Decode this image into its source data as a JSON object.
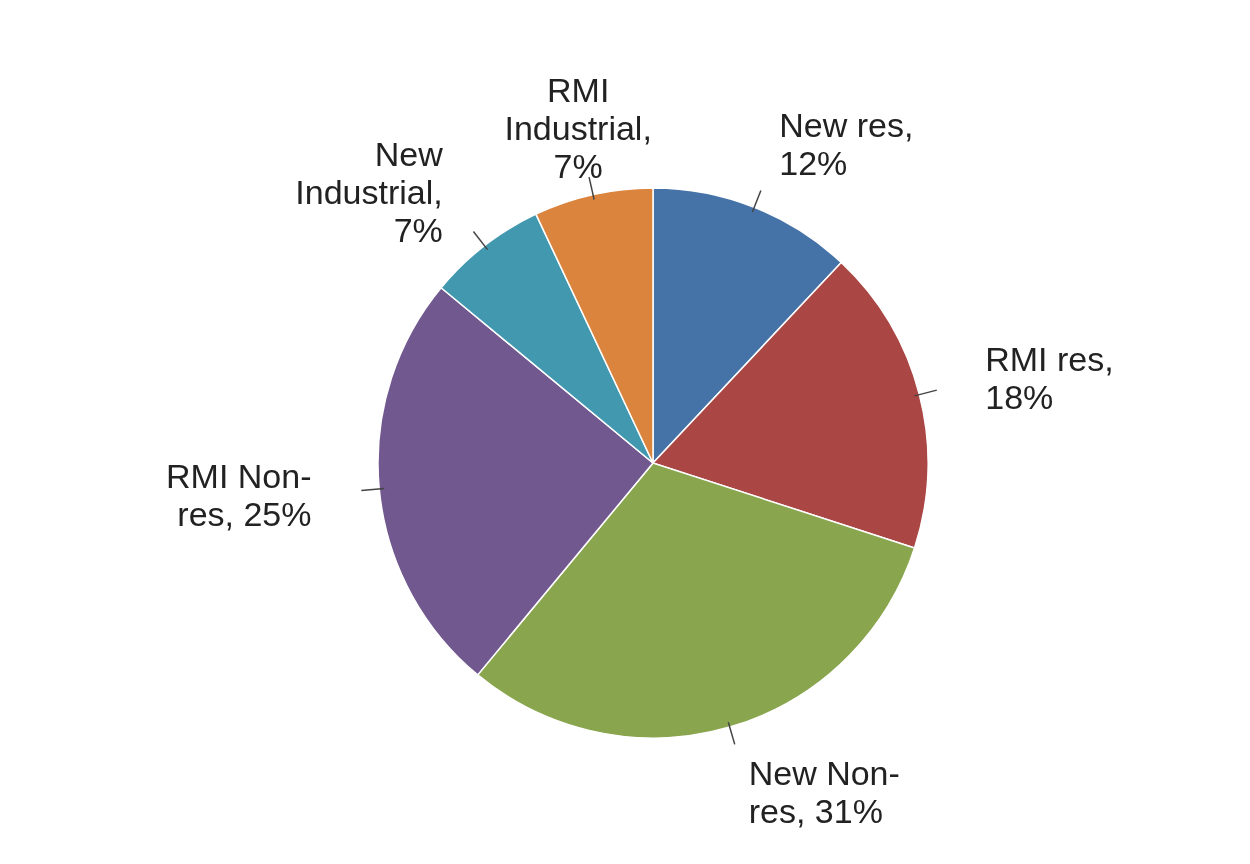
{
  "chart_data": {
    "type": "pie",
    "categories": [
      "New res, 12%",
      "RMI res, 18%",
      "New Non-res, 31%",
      "RMI Non-res, 25%",
      "New Industrial, 7%",
      "RMI Industrial, 7%"
    ],
    "values": [
      12,
      18,
      31,
      25,
      7,
      7
    ],
    "colors": [
      "#4572a7",
      "#aa4643",
      "#89a54e",
      "#71588f",
      "#4198af",
      "#db843d"
    ],
    "legend": false
  }
}
